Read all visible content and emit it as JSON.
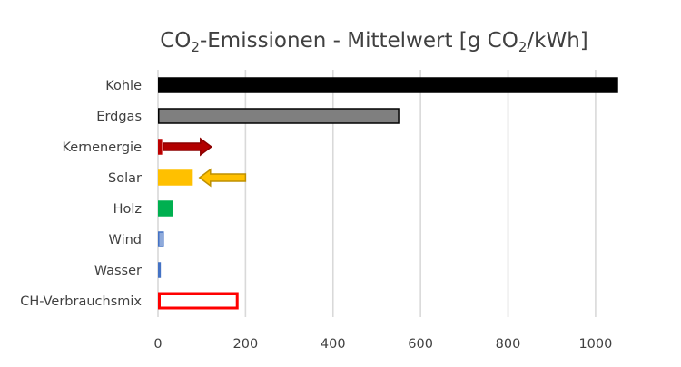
{
  "chart_data": {
    "type": "bar",
    "orientation": "horizontal",
    "title": {
      "prefix": "CO",
      "sub1": "2",
      "middle": "-Emissionen - Mittelwert [g CO",
      "sub2": "2",
      "suffix": "/kWh]"
    },
    "categories": [
      "Kohle",
      "Erdgas",
      "Kernenergie",
      "Solar",
      "Holz",
      "Wind",
      "Wasser",
      "CH-Verbrauchsmix"
    ],
    "values": [
      1050,
      550,
      8,
      78,
      32,
      12,
      5,
      181
    ],
    "bar_fills": [
      "#000000",
      "#7f7f7f",
      "#b20000",
      "#ffc000",
      "#00b050",
      "#8eaadb",
      "#4472c4",
      "#ffffff"
    ],
    "bar_strokes": [
      "#000000",
      "#000000",
      "#c00000",
      "#ffc000",
      "#00b050",
      "#4472c4",
      "#4472c4",
      "#ff0000"
    ],
    "xlim": [
      0,
      1050
    ],
    "xticks": [
      0,
      200,
      400,
      600,
      800,
      1000
    ],
    "xlabel": "",
    "ylabel": "",
    "grid": "vertical",
    "legend": "none",
    "annotations": [
      {
        "type": "arrow",
        "direction": "right",
        "category": "Kernenergie",
        "from": 12,
        "to": 122,
        "fill": "#b20000",
        "stroke": "#8b0000"
      },
      {
        "type": "arrow",
        "direction": "left",
        "category": "Solar",
        "from": 200,
        "to": 95,
        "fill": "#ffc000",
        "stroke": "#bf9000"
      }
    ]
  }
}
